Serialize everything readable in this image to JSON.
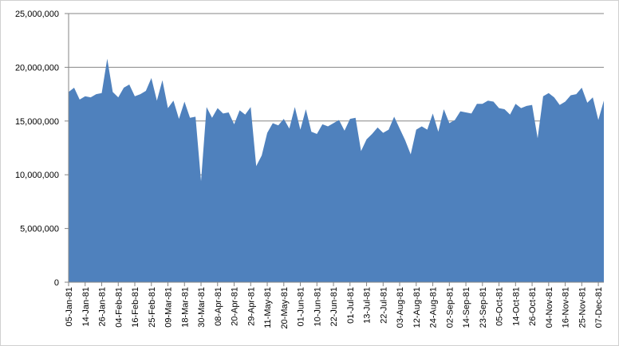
{
  "chart_data": {
    "type": "area",
    "categories": [
      "05-Jan-81",
      null,
      null,
      "14-Jan-81",
      null,
      null,
      "26-Jan-81",
      null,
      null,
      "04-Feb-81",
      null,
      null,
      "16-Feb-81",
      null,
      null,
      "25-Feb-81",
      null,
      null,
      "09-Mar-81",
      null,
      null,
      "18-Mar-81",
      null,
      null,
      "30-Mar-81",
      null,
      null,
      "08-Apr-81",
      null,
      null,
      "20-Apr-81",
      null,
      null,
      "29-Apr-81",
      null,
      null,
      "11-May-81",
      null,
      null,
      "20-May-81",
      null,
      null,
      "01-Jun-81",
      null,
      null,
      "10-Jun-81",
      null,
      null,
      "22-Jun-81",
      null,
      null,
      "01-Jul-81",
      null,
      null,
      "13-Jul-81",
      null,
      null,
      "22-Jul-81",
      null,
      null,
      "03-Aug-81",
      null,
      null,
      "12-Aug-81",
      null,
      null,
      "24-Aug-81",
      null,
      null,
      "02-Sep-81",
      null,
      null,
      "14-Sep-81",
      null,
      null,
      "23-Sep-81",
      null,
      null,
      "05-Oct-81",
      null,
      null,
      "14-Oct-81",
      null,
      null,
      "26-Oct-81",
      null,
      null,
      "04-Nov-81",
      null,
      null,
      "16-Nov-81",
      null,
      null,
      "25-Nov-81",
      null,
      null,
      "07-Dec-81",
      null
    ],
    "values": [
      17700000,
      18100000,
      17000000,
      17300000,
      17200000,
      17500000,
      17600000,
      20800000,
      17700000,
      17200000,
      18100000,
      18400000,
      17300000,
      17500000,
      17800000,
      19000000,
      16900000,
      18800000,
      16200000,
      16900000,
      15200000,
      16800000,
      15300000,
      15400000,
      9400000,
      16300000,
      15300000,
      16200000,
      15700000,
      15800000,
      14700000,
      16000000,
      15600000,
      16300000,
      10800000,
      11800000,
      13900000,
      14800000,
      14600000,
      15200000,
      14300000,
      16300000,
      14200000,
      16100000,
      14000000,
      13800000,
      14700000,
      14500000,
      14800000,
      15100000,
      14100000,
      15200000,
      15300000,
      12200000,
      13300000,
      13800000,
      14400000,
      13900000,
      14200000,
      15400000,
      14300000,
      13200000,
      11900000,
      14200000,
      14500000,
      14200000,
      15700000,
      14000000,
      16100000,
      14800000,
      15100000,
      15900000,
      15800000,
      15700000,
      16600000,
      16600000,
      16900000,
      16800000,
      16200000,
      16100000,
      15600000,
      16600000,
      16200000,
      16400000,
      16500000,
      13400000,
      17300000,
      17600000,
      17200000,
      16500000,
      16800000,
      17400000,
      17500000,
      18100000,
      16700000,
      17200000,
      15100000,
      16900000
    ],
    "color": "#4f81bd",
    "ylim": [
      0,
      25000000
    ],
    "yticks": [
      0,
      {
        "value": 5000000,
        "label": "5,000,000"
      },
      {
        "value": 10000000,
        "label": "10,000,000"
      },
      {
        "value": 15000000,
        "label": "15,000,000"
      },
      {
        "value": 20000000,
        "label": "20,000,000"
      },
      {
        "value": 25000000,
        "label": "25,000,000"
      }
    ],
    "grid": true
  }
}
